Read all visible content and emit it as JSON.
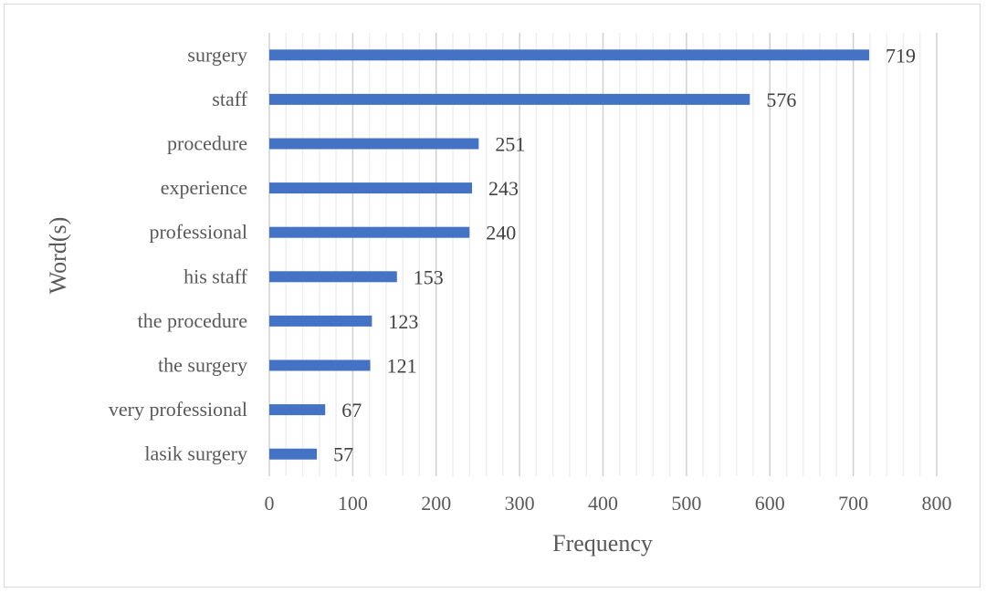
{
  "chart_data": {
    "type": "bar",
    "orientation": "horizontal",
    "title": "",
    "xlabel": "Frequency",
    "ylabel": "Word(s)",
    "xlim": [
      0,
      800
    ],
    "x_major_ticks": [
      0,
      100,
      200,
      300,
      400,
      500,
      600,
      700,
      800
    ],
    "grid": "vertical major and minor gridlines",
    "legend": "none",
    "bar_color": "#4472C4",
    "data_labels": "outside end",
    "categories": [
      "surgery",
      "staff",
      "procedure",
      "experience",
      "professional",
      "his staff",
      "the procedure",
      "the surgery",
      "very professional",
      "lasik surgery"
    ],
    "values": [
      719,
      576,
      251,
      243,
      240,
      153,
      123,
      121,
      67,
      57
    ]
  }
}
